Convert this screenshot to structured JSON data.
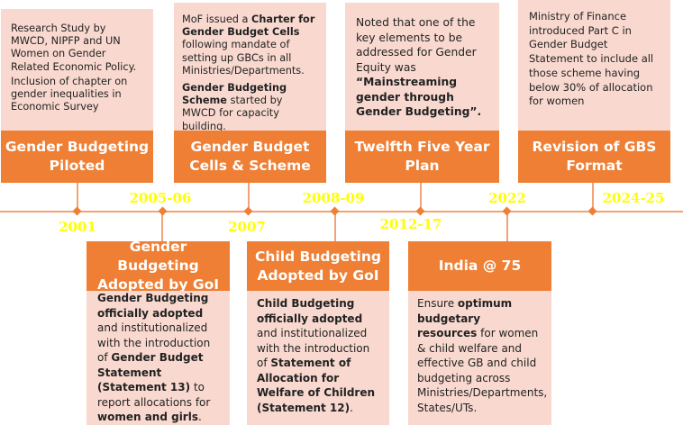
{
  "colors": {
    "accent": "#ee7f34",
    "panel": "#f9d9cf",
    "year": "#ffff00",
    "line": "#f2a377"
  },
  "events": [
    {
      "year": "2001",
      "title": "Gender Budgeting Piloted",
      "desc": [
        "Research Study by MWCD, NIPFP and UN Women on  Gender Related Economic Policy.",
        "Inclusion of chapter on gender inequalities in Economic Survey"
      ]
    },
    {
      "year": "2005-06",
      "title": "Gender Budgeting Adopted by GoI",
      "desc_b1": "Gender Budgeting officially adopted",
      "desc_t1": " and institutionalized with the introduction of ",
      "desc_b2": "Gender Budget Statement (Statement 13)",
      "desc_t2": " to report allocations for ",
      "desc_b3": "women and girls",
      "desc_t3": "."
    },
    {
      "year": "2007",
      "title": "Gender Budget Cells & Scheme",
      "desc_t1": "MoF issued a ",
      "desc_b1": "Charter for Gender Budget Cells",
      "desc_t2": " following mandate of setting up GBCs in all Ministries/Departments.",
      "desc_b2": "Gender Budgeting Scheme",
      "desc_t3": " started by MWCD for capacity building."
    },
    {
      "year": "2008-09",
      "title": "Child Budgeting Adopted by GoI",
      "desc_b1": "Child Budgeting officially adopted",
      "desc_t1": " and institutionalized with the introduction of ",
      "desc_b2": "Statement of Allocation for Welfare of Children (Statement 12)",
      "desc_t2": "."
    },
    {
      "year": "2012-17",
      "title": "Twelfth Five Year Plan",
      "desc_t1": "Noted that one of the key elements to be addressed for Gender Equity was ",
      "desc_b1": "“Mainstreaming gender through Gender Budgeting”."
    },
    {
      "year": "2022",
      "title": "India @ 75",
      "desc_t1": "Ensure ",
      "desc_b1": "optimum budgetary resources",
      "desc_t2": " for women & child welfare and effective GB and child budgeting across Ministries/Departments, States/UTs."
    },
    {
      "year": "2024-25",
      "title": "Revision of GBS Format",
      "desc_t1": "Ministry of Finance introduced Part C in Gender Budget Statement to include all those scheme having below 30% of allocation for women"
    }
  ]
}
